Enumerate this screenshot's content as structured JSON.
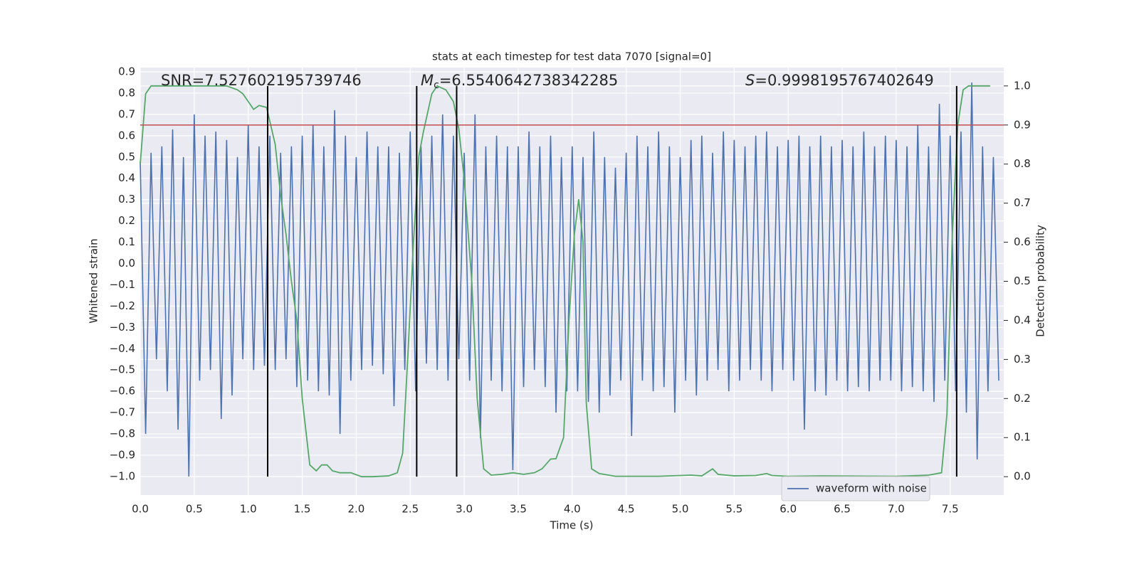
{
  "chart_data": {
    "type": "line",
    "title": "stats at each timestep for test data 7070 [signal=0]",
    "xlabel": "Time (s)",
    "ylabel": "Whitened strain",
    "y2label": "Detection probability",
    "xlim": [
      0,
      7.996
    ],
    "ylim": [
      -1.087,
      0.92
    ],
    "y2lim": [
      -0.047,
      1.047
    ],
    "grid": true,
    "legend": "lower right",
    "xticks": [
      {
        "value": 0,
        "label": "0.0"
      },
      0.5,
      {
        "value": 1,
        "label": "1.0"
      },
      1.5,
      {
        "value": 2,
        "label": "2.0"
      },
      2.5,
      {
        "value": 3,
        "label": "3.0"
      },
      3.5,
      {
        "value": 4,
        "label": "4.0"
      },
      4.5,
      {
        "value": 5,
        "label": "5.0"
      },
      5.5,
      {
        "value": 6,
        "label": "6.0"
      },
      6.5,
      {
        "value": 7,
        "label": "7.0"
      },
      7.5
    ],
    "yticks": [
      0.9,
      0.8,
      0.7,
      0.6,
      0.5,
      0.4,
      0.3,
      0.2,
      0.1,
      {
        "value": 0,
        "label": "0.0"
      },
      {
        "value": -0.1,
        "label": "−0.1"
      },
      {
        "value": -0.2,
        "label": "−0.2"
      },
      {
        "value": -0.3,
        "label": "−0.3"
      },
      {
        "value": -0.4,
        "label": "−0.4"
      },
      {
        "value": -0.5,
        "label": "−0.5"
      },
      {
        "value": -0.6,
        "label": "−0.6"
      },
      {
        "value": -0.7,
        "label": "−0.7"
      },
      {
        "value": -0.8,
        "label": "−0.8"
      },
      {
        "value": -0.9,
        "label": "−0.9"
      },
      {
        "value": -1,
        "label": "−1.0"
      }
    ],
    "y2ticks": [
      {
        "value": 0,
        "label": "0.0"
      },
      0.1,
      0.2,
      0.3,
      0.4,
      0.5,
      0.6,
      0.7,
      0.8,
      0.9,
      {
        "value": 1,
        "label": "1.0"
      }
    ],
    "annotations": [
      {
        "text": "SNR=7.527602195739746"
      },
      {
        "symbol": "M",
        "subscript": "c",
        "text": "=6.5540642738342285"
      },
      {
        "symbol": "S",
        "text": "=0.9998195767402649"
      }
    ],
    "hlines": [
      {
        "value": 0.9,
        "axis": "y2",
        "color": "#c44e52"
      }
    ],
    "vlines": [
      1.18,
      2.56,
      2.93,
      7.56
    ],
    "vline_color": "#000000",
    "series": [
      {
        "name": "waveform with noise",
        "color": "#4c72b0",
        "x": [
          0,
          0.05,
          0.1,
          0.15,
          0.2,
          0.25,
          0.3,
          0.35,
          0.4,
          0.45,
          0.5,
          0.55,
          0.6,
          0.65,
          0.7,
          0.75,
          0.8,
          0.85,
          0.9,
          0.95,
          1,
          1.05,
          1.1,
          1.15,
          1.2,
          1.25,
          1.3,
          1.35,
          1.4,
          1.45,
          1.5,
          1.55,
          1.6,
          1.65,
          1.7,
          1.75,
          1.8,
          1.85,
          1.9,
          1.95,
          2,
          2.05,
          2.1,
          2.15,
          2.2,
          2.25,
          2.3,
          2.35,
          2.4,
          2.45,
          2.5,
          2.55,
          2.6,
          2.65,
          2.7,
          2.75,
          2.8,
          2.85,
          2.9,
          2.95,
          3,
          3.05,
          3.1,
          3.15,
          3.2,
          3.25,
          3.3,
          3.35,
          3.4,
          3.45,
          3.5,
          3.55,
          3.6,
          3.65,
          3.7,
          3.75,
          3.8,
          3.85,
          3.9,
          3.95,
          4,
          4.05,
          4.1,
          4.15,
          4.2,
          4.25,
          4.3,
          4.35,
          4.4,
          4.45,
          4.5,
          4.55,
          4.6,
          4.65,
          4.7,
          4.75,
          4.8,
          4.85,
          4.9,
          4.95,
          5,
          5.05,
          5.1,
          5.15,
          5.2,
          5.25,
          5.3,
          5.35,
          5.4,
          5.45,
          5.5,
          5.55,
          5.6,
          5.65,
          5.7,
          5.75,
          5.8,
          5.85,
          5.9,
          5.95,
          6,
          6.05,
          6.1,
          6.15,
          6.2,
          6.25,
          6.3,
          6.35,
          6.4,
          6.45,
          6.5,
          6.55,
          6.6,
          6.65,
          6.7,
          6.75,
          6.8,
          6.85,
          6.9,
          6.95,
          7,
          7.05,
          7.1,
          7.15,
          7.2,
          7.25,
          7.3,
          7.35,
          7.4,
          7.45,
          7.5,
          7.55,
          7.6,
          7.65,
          7.7,
          7.75,
          7.8,
          7.85,
          7.9,
          7.95
        ],
        "values": [
          0.48,
          -0.8,
          0.52,
          -0.45,
          0.55,
          -0.6,
          0.63,
          -0.78,
          0.5,
          -1.0,
          0.7,
          -0.55,
          0.6,
          -0.5,
          0.62,
          -0.73,
          0.58,
          -0.62,
          0.5,
          -0.45,
          0.65,
          -0.5,
          0.55,
          -0.48,
          0.6,
          -0.5,
          0.52,
          -0.45,
          0.55,
          -0.58,
          0.6,
          -0.55,
          0.65,
          -0.6,
          0.55,
          -0.62,
          0.72,
          -0.8,
          0.6,
          -0.55,
          0.5,
          -0.5,
          0.62,
          -0.48,
          0.55,
          -0.52,
          0.55,
          -0.67,
          0.52,
          -0.5,
          0.62,
          -0.6,
          0.55,
          -0.47,
          0.6,
          -0.5,
          0.7,
          -0.55,
          0.6,
          -0.45,
          0.52,
          -0.55,
          0.7,
          -0.82,
          0.55,
          -0.55,
          0.6,
          -0.6,
          0.55,
          -0.97,
          0.55,
          -0.58,
          0.62,
          -0.5,
          0.55,
          -0.58,
          0.6,
          -0.7,
          0.5,
          -0.6,
          0.55,
          -0.6,
          0.5,
          -0.65,
          0.62,
          -0.7,
          0.5,
          -0.62,
          0.45,
          -0.55,
          0.52,
          -0.81,
          0.6,
          -0.55,
          0.55,
          -0.6,
          0.62,
          -0.58,
          0.55,
          -0.7,
          0.5,
          -0.55,
          0.58,
          -0.62,
          0.6,
          -0.55,
          0.52,
          -0.5,
          0.62,
          -0.6,
          0.58,
          -0.55,
          0.55,
          -0.5,
          0.6,
          -0.55,
          0.62,
          -0.6,
          0.55,
          -0.5,
          0.58,
          -0.55,
          0.6,
          -0.78,
          0.55,
          -0.6,
          0.6,
          -0.62,
          0.55,
          -0.55,
          0.58,
          -0.6,
          0.55,
          -0.58,
          0.62,
          -0.6,
          0.55,
          -0.55,
          0.6,
          -0.55,
          0.58,
          -0.6,
          0.55,
          -0.58,
          0.65,
          -0.6,
          0.55,
          -0.65,
          0.75,
          -0.55,
          0.6,
          -0.6,
          0.62,
          -0.7,
          0.85,
          -0.92,
          0.55,
          -0.6,
          0.5,
          -0.55
        ]
      },
      {
        "color": "#55a868",
        "axis": "y2",
        "x": [
          0,
          0.05,
          0.1,
          0.15,
          0.8,
          0.9,
          0.95,
          1,
          1.05,
          1.1,
          1.17,
          1.25,
          1.3,
          1.35,
          1.4,
          1.45,
          1.5,
          1.57,
          1.63,
          1.68,
          1.73,
          1.78,
          1.85,
          1.95,
          2.05,
          2.15,
          2.3,
          2.38,
          2.43,
          2.48,
          2.53,
          2.58,
          2.62,
          2.7,
          2.75,
          2.83,
          2.9,
          2.95,
          3,
          3.07,
          3.12,
          3.18,
          3.25,
          3.35,
          3.45,
          3.55,
          3.65,
          3.72,
          3.8,
          3.85,
          3.92,
          3.97,
          4.02,
          4.06,
          4.1,
          4.13,
          4.18,
          4.25,
          4.4,
          4.8,
          5.1,
          5.2,
          5.3,
          5.35,
          5.5,
          5.7,
          5.8,
          5.85,
          6,
          6.3,
          7,
          7.3,
          7.42,
          7.47,
          7.52,
          7.57,
          7.62,
          7.67,
          7.87
        ],
        "values": [
          0.8,
          0.98,
          1.0,
          1.0,
          1.0,
          0.99,
          0.98,
          0.96,
          0.94,
          0.95,
          0.945,
          0.85,
          0.72,
          0.62,
          0.5,
          0.4,
          0.2,
          0.03,
          0.015,
          0.03,
          0.03,
          0.015,
          0.01,
          0.01,
          0.0,
          0.0,
          0.002,
          0.01,
          0.06,
          0.32,
          0.6,
          0.82,
          0.88,
          0.98,
          1.0,
          0.99,
          0.96,
          0.89,
          0.76,
          0.5,
          0.2,
          0.02,
          0.004,
          0.006,
          0.01,
          0.006,
          0.01,
          0.02,
          0.045,
          0.046,
          0.1,
          0.4,
          0.62,
          0.71,
          0.6,
          0.19,
          0.02,
          0.008,
          0.001,
          0.001,
          0.004,
          0.002,
          0.02,
          0.006,
          0.002,
          0.003,
          0.008,
          0.003,
          0.001,
          0.002,
          0.001,
          0.004,
          0.01,
          0.16,
          0.62,
          0.9,
          0.99,
          1.0,
          1.0
        ]
      }
    ]
  }
}
